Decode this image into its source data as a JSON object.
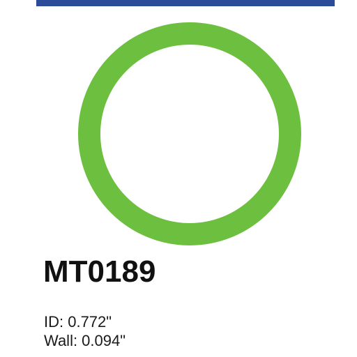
{
  "header": {
    "bar_color": "#2e4b9a"
  },
  "product": {
    "image_icon": "o-ring-icon",
    "ring_color": "#6cbf3f",
    "part_number": "MT0189",
    "specs": {
      "id": "ID: 0.772\"",
      "wall": "Wall: 0.094\""
    }
  }
}
